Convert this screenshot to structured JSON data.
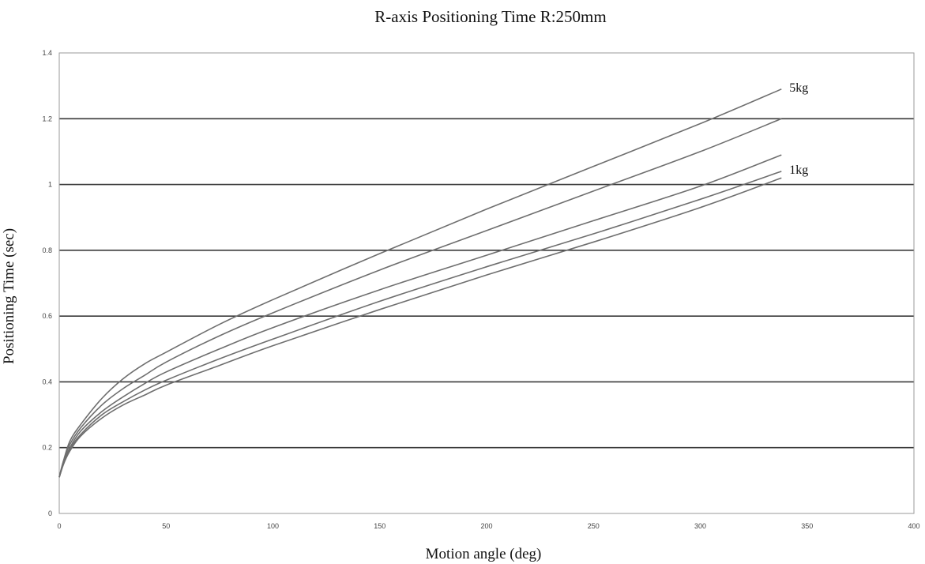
{
  "chart_data": {
    "type": "line",
    "title": "R-axis Positioning Time R:250mm",
    "xlabel": "Motion angle (deg)",
    "ylabel": "Positioning Time (sec)",
    "xlim": [
      0,
      400
    ],
    "ylim": [
      0,
      1.4
    ],
    "x_ticks": [
      0,
      50,
      100,
      150,
      200,
      250,
      300,
      350,
      400
    ],
    "x_tick_labels": [
      "0",
      "50",
      "100",
      "150",
      "200",
      "250",
      "300",
      "350",
      "400"
    ],
    "y_ticks": [
      0,
      0.2,
      0.4,
      0.6,
      0.8,
      1.0,
      1.2,
      1.4
    ],
    "y_tick_labels": [
      "0",
      "0.2",
      "0.4",
      "0.6",
      "0.8",
      "1",
      "1.2",
      "1.4"
    ],
    "grid": "horizontal",
    "x": [
      0,
      2,
      5,
      10,
      20,
      30,
      40,
      50,
      75,
      100,
      150,
      200,
      250,
      300,
      338
    ],
    "series": [
      {
        "name": "5kg",
        "values": [
          0.11,
          0.16,
          0.22,
          0.27,
          0.35,
          0.41,
          0.455,
          0.49,
          0.575,
          0.65,
          0.79,
          0.925,
          1.055,
          1.185,
          1.29
        ]
      },
      {
        "name": "",
        "values": [
          0.11,
          0.16,
          0.21,
          0.26,
          0.33,
          0.38,
          0.42,
          0.46,
          0.54,
          0.61,
          0.74,
          0.86,
          0.98,
          1.1,
          1.2
        ]
      },
      {
        "name": "",
        "values": [
          0.11,
          0.155,
          0.2,
          0.25,
          0.31,
          0.355,
          0.395,
          0.43,
          0.5,
          0.565,
          0.68,
          0.785,
          0.89,
          0.995,
          1.09
        ]
      },
      {
        "name": "1kg",
        "values": [
          0.11,
          0.15,
          0.195,
          0.24,
          0.3,
          0.34,
          0.375,
          0.405,
          0.47,
          0.53,
          0.645,
          0.75,
          0.85,
          0.955,
          1.04
        ]
      },
      {
        "name": "",
        "values": [
          0.11,
          0.15,
          0.19,
          0.235,
          0.29,
          0.33,
          0.36,
          0.39,
          0.45,
          0.51,
          0.62,
          0.725,
          0.825,
          0.93,
          1.02
        ]
      }
    ]
  }
}
